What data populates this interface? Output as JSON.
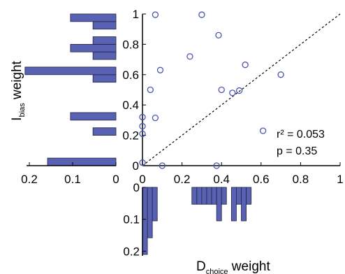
{
  "chart_data": [
    {
      "type": "scatter",
      "x_label": {
        "main": "D",
        "sub": "choice",
        "rest": " weight"
      },
      "y_label": {
        "main": "I",
        "sub": "bias",
        "rest": " weight"
      },
      "xlim": [
        0,
        1
      ],
      "ylim": [
        0,
        1
      ],
      "x_ticks": [
        {
          "value": 0,
          "label": "0"
        },
        {
          "value": 0.2,
          "label": "0.2"
        },
        {
          "value": 0.4,
          "label": "0.4"
        },
        {
          "value": 0.6,
          "label": "0.6"
        },
        {
          "value": 0.8,
          "label": "0.8"
        },
        {
          "value": 1,
          "label": "1"
        }
      ],
      "y_ticks": [
        {
          "value": 0,
          "label": "0"
        },
        {
          "value": 0.2,
          "label": "0.2"
        },
        {
          "value": 0.4,
          "label": "0.4"
        },
        {
          "value": 0.6,
          "label": "0.6"
        },
        {
          "value": 0.8,
          "label": "0.8"
        },
        {
          "value": 1,
          "label": "1"
        }
      ],
      "points": [
        {
          "x": 0.065,
          "y": 0.995
        },
        {
          "x": 0.3,
          "y": 0.995
        },
        {
          "x": 0.385,
          "y": 0.86
        },
        {
          "x": 0.24,
          "y": 0.72
        },
        {
          "x": 0.52,
          "y": 0.665
        },
        {
          "x": 0.09,
          "y": 0.63
        },
        {
          "x": 0.7,
          "y": 0.6
        },
        {
          "x": 0.04,
          "y": 0.5
        },
        {
          "x": 0.4,
          "y": 0.5
        },
        {
          "x": 0.455,
          "y": 0.48
        },
        {
          "x": 0.49,
          "y": 0.495
        },
        {
          "x": 0.0,
          "y": 0.32
        },
        {
          "x": 0.065,
          "y": 0.315
        },
        {
          "x": 0.0,
          "y": 0.26
        },
        {
          "x": 0.0,
          "y": 0.21
        },
        {
          "x": 0.61,
          "y": 0.23
        },
        {
          "x": 0.0,
          "y": 0.02
        },
        {
          "x": 0.1,
          "y": 0.0
        },
        {
          "x": 0.375,
          "y": 0.0
        }
      ],
      "reference_line": "y = x (dashed)",
      "stats": {
        "r2": "r² = 0.053",
        "p": "p = 0.35"
      },
      "marker_color": "#4a55b0",
      "grid": false
    },
    {
      "type": "bar",
      "orientation": "horizontal",
      "role": "marginal histogram of I_bias weight",
      "bin_range": [
        0,
        1
      ],
      "bin_width": 0.05,
      "xlim": [
        0,
        0.2
      ],
      "x_ticks": [
        {
          "value": 0.2,
          "label": "0.2"
        },
        {
          "value": 0.1,
          "label": "0.1"
        },
        {
          "value": 0,
          "label": "0"
        }
      ],
      "values": [
        0.158,
        0.0,
        0.0,
        0.0,
        0.053,
        0.0,
        0.105,
        0.0,
        0.0,
        0.0,
        0.0,
        0.053,
        0.21,
        0.0,
        0.053,
        0.105,
        0.053,
        0.0,
        0.053,
        0.105
      ],
      "fill_color": "#5961b3",
      "edge_color": "#222244"
    },
    {
      "type": "bar",
      "orientation": "vertical-down",
      "role": "marginal histogram of D_choice weight",
      "bin_range": [
        0,
        1
      ],
      "bin_width": 0.025,
      "ylim": [
        0,
        0.21
      ],
      "y_ticks": [
        {
          "value": 0,
          "label": "0"
        },
        {
          "value": 0.1,
          "label": "0.1"
        },
        {
          "value": 0.2,
          "label": "0.2"
        }
      ],
      "values": [
        0.21,
        0.158,
        0.105,
        0.0,
        0.0,
        0.0,
        0.0,
        0.0,
        0.0,
        0.0,
        0.053,
        0.053,
        0.053,
        0.053,
        0.053,
        0.105,
        0.053,
        0.0,
        0.105,
        0.053,
        0.105,
        0.053,
        0.0,
        0.0,
        0.0,
        0.0,
        0.0,
        0.0,
        0.0,
        0.0,
        0.0,
        0.0,
        0.0,
        0.0,
        0.0,
        0.0,
        0.0,
        0.0,
        0.0,
        0.0
      ],
      "fill_color": "#5961b3",
      "edge_color": "#222244"
    }
  ]
}
